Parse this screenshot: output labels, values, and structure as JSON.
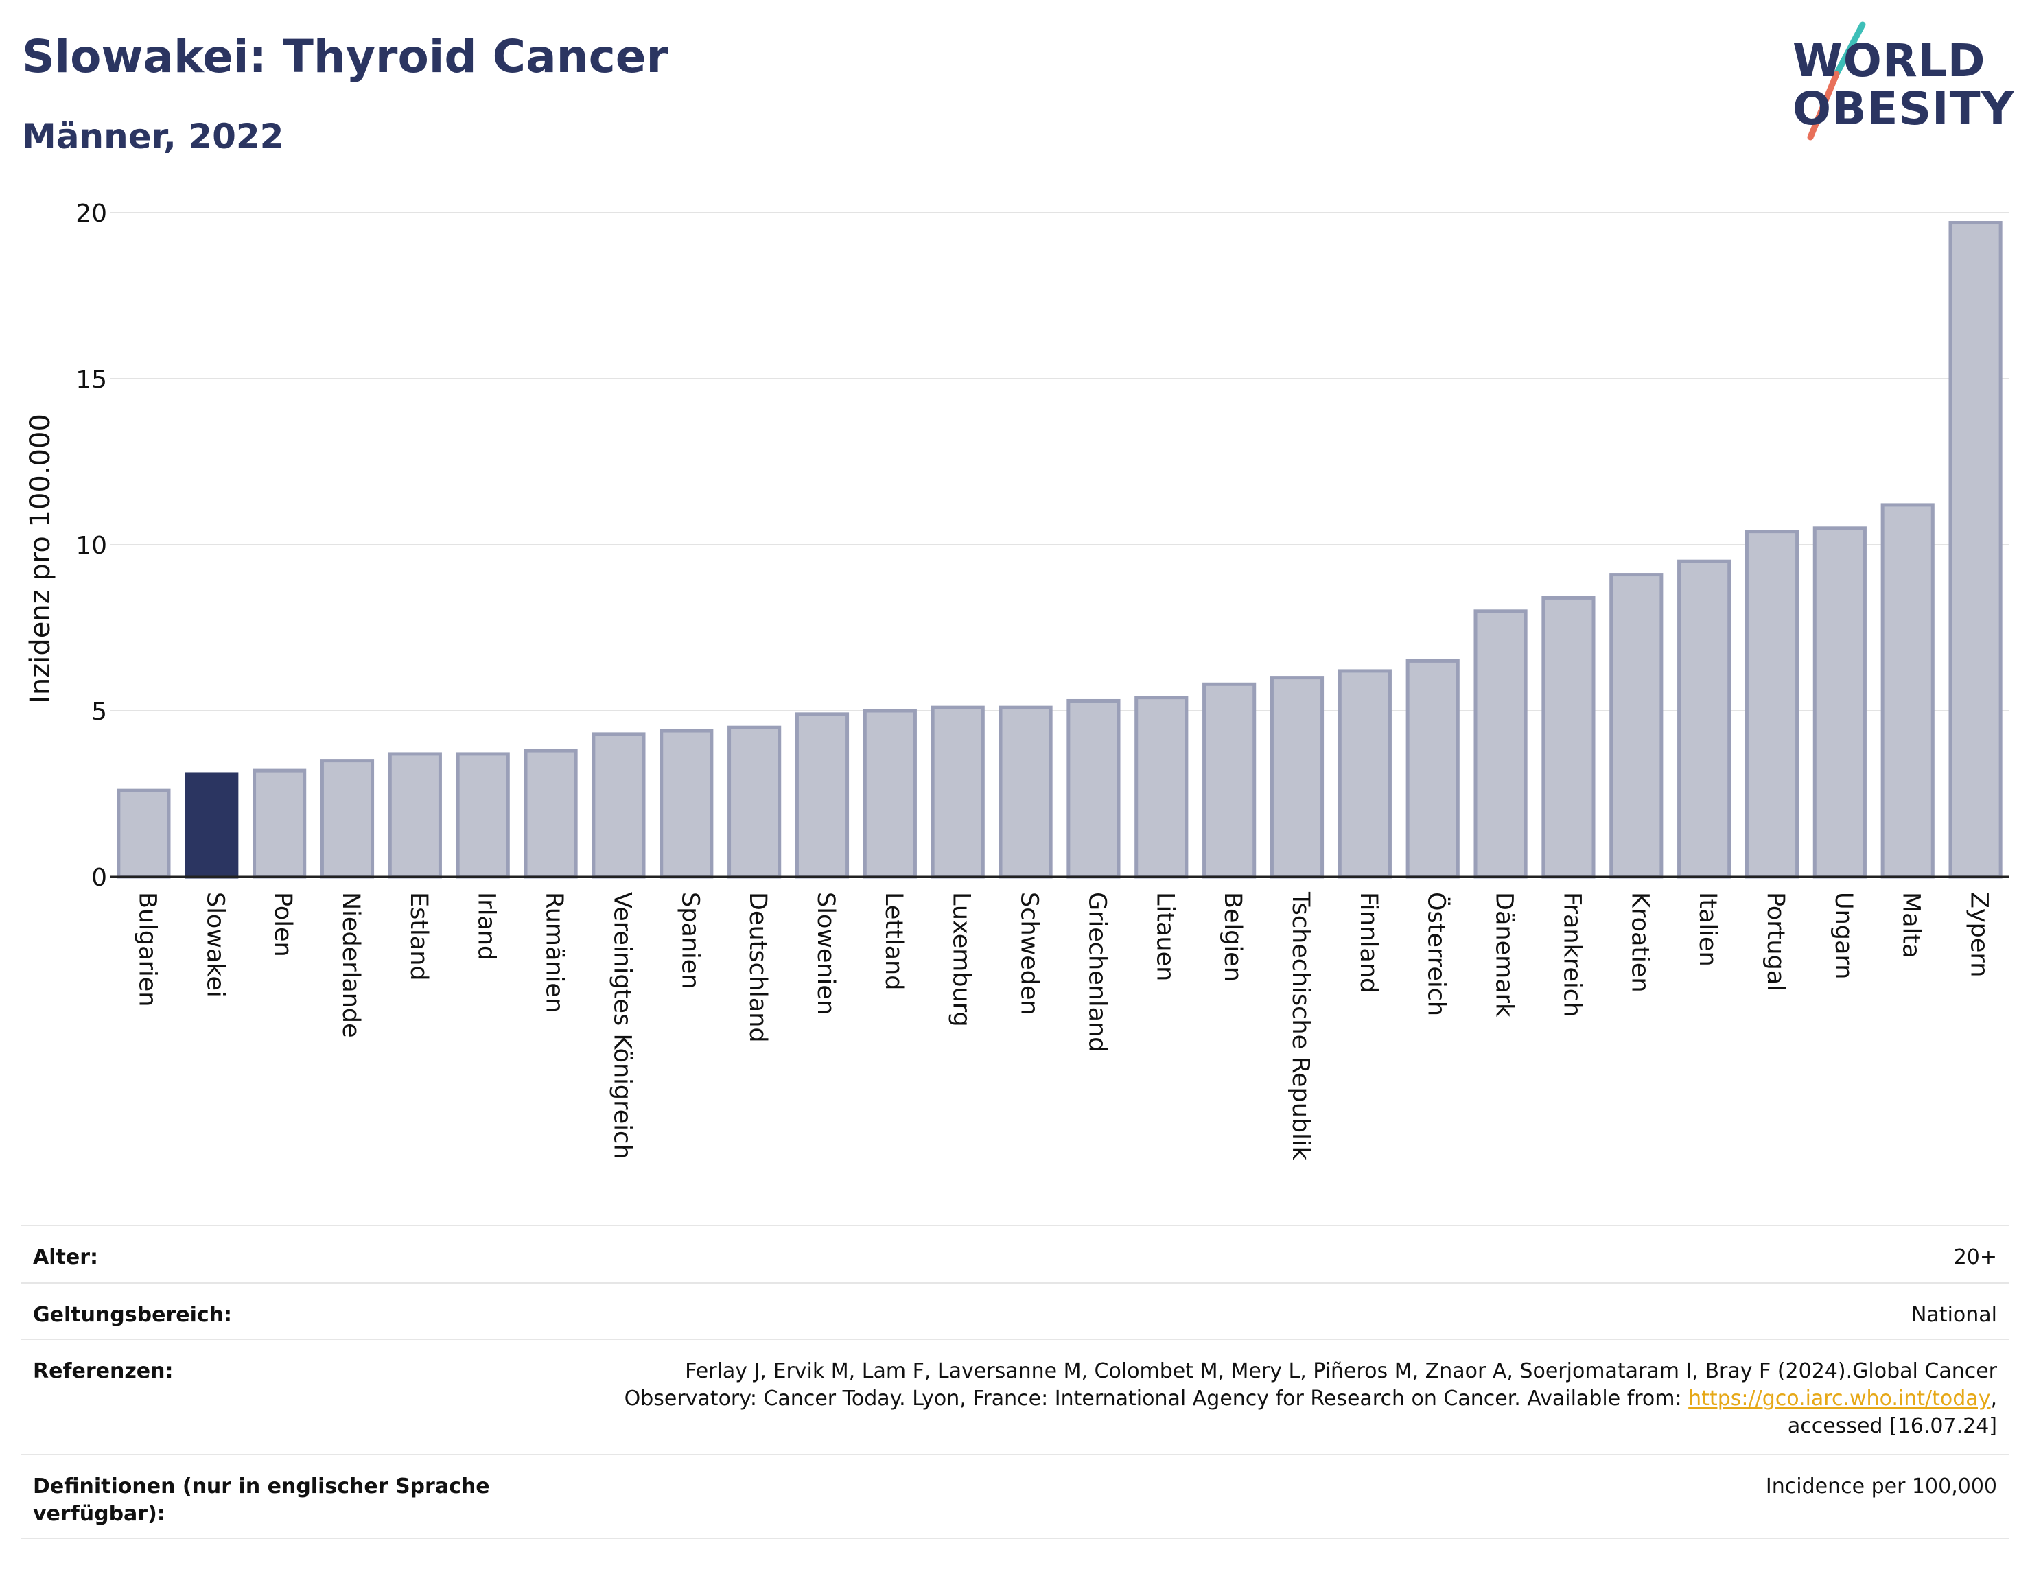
{
  "header": {
    "title": "Slowakei: Thyroid Cancer",
    "subtitle": "Männer, 2022"
  },
  "logo": {
    "line1": "WORLD",
    "line2": "OBESITY",
    "colors": {
      "text": "#2b3561",
      "slash_top": "#3dbfb8",
      "slash_bottom": "#e8705a"
    }
  },
  "chart_data": {
    "type": "bar",
    "ylabel": "Inzidenz pro 100.000",
    "ylim": [
      0,
      20
    ],
    "yticks": [
      0,
      5,
      10,
      15,
      20
    ],
    "grid": true,
    "highlight": "Slowakei",
    "colors": {
      "bar": "#bfc2cf",
      "bar_border": "#9a9fb8",
      "highlight": "#2b3561"
    },
    "categories": [
      "Bulgarien",
      "Slowakei",
      "Polen",
      "Niederlande",
      "Estland",
      "Irland",
      "Rumänien",
      "Vereinigtes Königreich",
      "Spanien",
      "Deutschland",
      "Slowenien",
      "Lettland",
      "Luxemburg",
      "Schweden",
      "Griechenland",
      "Litauen",
      "Belgien",
      "Tschechische Republik",
      "Finnland",
      "Österreich",
      "Dänemark",
      "Frankreich",
      "Kroatien",
      "Italien",
      "Portugal",
      "Ungarn",
      "Malta",
      "Zypern"
    ],
    "values": [
      2.6,
      3.1,
      3.2,
      3.5,
      3.7,
      3.7,
      3.8,
      4.3,
      4.4,
      4.5,
      4.9,
      5.0,
      5.1,
      5.1,
      5.3,
      5.4,
      5.8,
      6.0,
      6.2,
      6.5,
      8.0,
      8.4,
      9.1,
      9.5,
      10.4,
      10.5,
      11.2,
      19.7
    ]
  },
  "meta": {
    "age": {
      "label": "Alter:",
      "value": "20+"
    },
    "scope": {
      "label": "Geltungsbereich:",
      "value": "National"
    },
    "references": {
      "label": "Referenzen:",
      "text_line1": "Ferlay J, Ervik M, Lam F, Laversanne M, Colombet M, Mery L, Piñeros M, Znaor A, Soerjomataram I, Bray F (2024).Global Cancer",
      "text_line2": "Observatory: Cancer Today. Lyon, France: International Agency for Research on Cancer. Available from:",
      "link": "https://gco.iarc.who.int/today",
      "after_link": ",",
      "text_line3": "accessed [16.07.24]"
    },
    "definitions": {
      "label": "Definitionen (nur in englischer Sprache verfügbar):",
      "value": "Incidence per 100,000"
    }
  }
}
